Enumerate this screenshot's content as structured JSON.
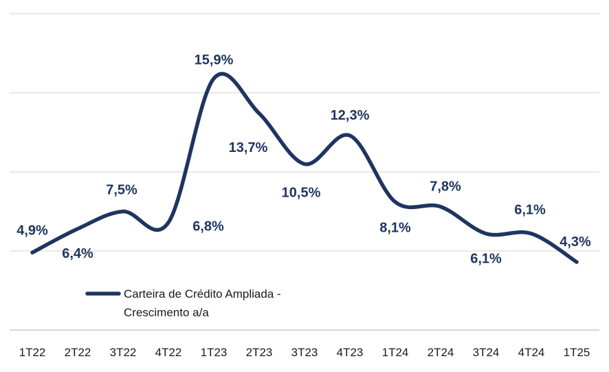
{
  "chart_data": {
    "type": "line",
    "categories": [
      "1T22",
      "2T22",
      "3T22",
      "4T22",
      "1T23",
      "2T23",
      "3T23",
      "4T23",
      "1T24",
      "2T24",
      "3T24",
      "4T24",
      "1T25"
    ],
    "series": [
      {
        "name_lines": [
          "Carteira de Crédito Ampliada -",
          "Crescimento a/a"
        ],
        "values": [
          4.9,
          6.4,
          7.5,
          6.8,
          15.9,
          13.7,
          10.5,
          12.3,
          8.1,
          7.8,
          6.1,
          6.1,
          4.3
        ],
        "labels": [
          "4,9%",
          "6,4%",
          "7,5%",
          "6,8%",
          "15,9%",
          "13,7%",
          "10,5%",
          "12,3%",
          "8,1%",
          "7,8%",
          "6,1%",
          "6,1%",
          "4,3%"
        ]
      }
    ],
    "ylim": [
      0,
      20
    ],
    "grid": true,
    "legend": "lower-left",
    "colors": {
      "line": "#1f3560",
      "grid": "#d9d9d9",
      "axis": "#bfbfbf"
    }
  }
}
